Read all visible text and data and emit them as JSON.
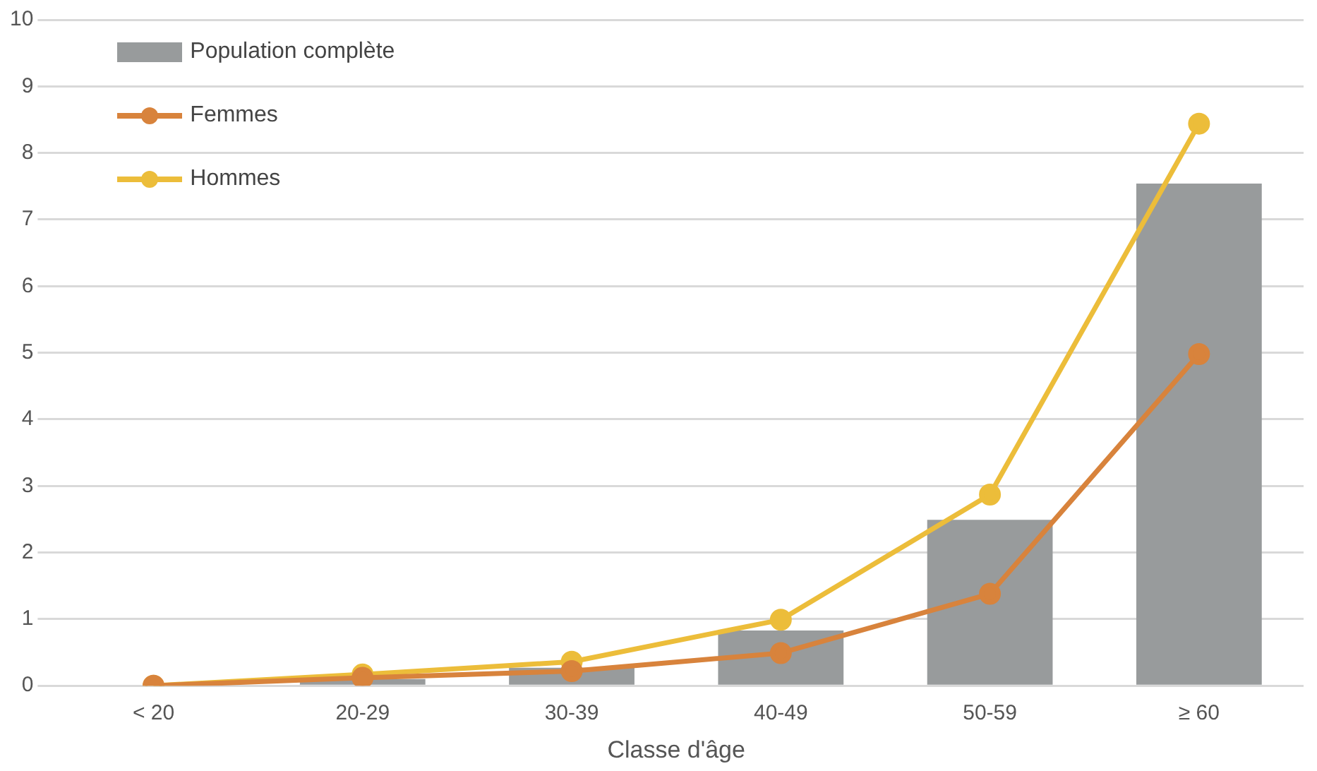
{
  "chart_data": {
    "type": "bar",
    "xlabel": "Classe d'âge",
    "categories": [
      "< 20",
      "20-29",
      "30-39",
      "40-49",
      "50-59",
      "≥ 60"
    ],
    "series": [
      {
        "name": "Population complète",
        "color": "#989b9c",
        "values": [
          0,
          0.1,
          0.27,
          0.83,
          2.49,
          7.54
        ]
      },
      {
        "name": "Femmes",
        "type": "line",
        "color": "#d8833c",
        "values": [
          0,
          0.12,
          0.22,
          0.49,
          1.38,
          4.98
        ]
      },
      {
        "name": "Hommes",
        "type": "line",
        "color": "#ecbd3a",
        "values": [
          0,
          0.17,
          0.36,
          0.99,
          2.87,
          8.44
        ]
      }
    ],
    "ylim": [
      0,
      10
    ],
    "yticks": [
      0,
      1,
      2,
      3,
      4,
      5,
      6,
      7,
      8,
      9,
      10
    ],
    "grid": "y",
    "legend": "top left",
    "marker": "circle",
    "line_style": "solid"
  }
}
